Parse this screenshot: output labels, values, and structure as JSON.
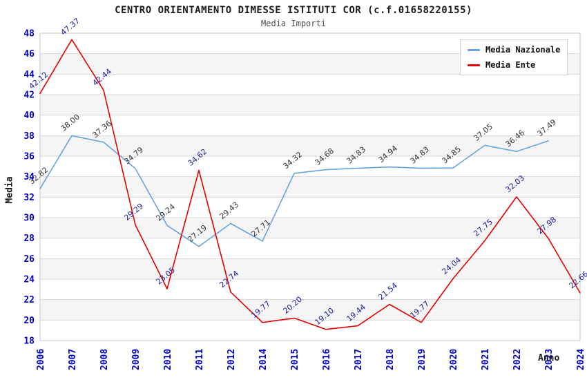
{
  "header": {
    "title": "CENTRO ORIENTAMENTO DIMESSE ISTITUTI COR (c.f.01658220155)",
    "subtitle": "Media Importi"
  },
  "legend": {
    "items": [
      {
        "label": "Media Nazionale",
        "color": "#69a3df"
      },
      {
        "label": "Media Ente",
        "color": "#e60000"
      }
    ]
  },
  "colors": {
    "axis_tick_blue": "#0000cc",
    "band_gray": "#f5f5f5",
    "gridline": "#d9d9d9",
    "plot_border": "#c8c8c8",
    "nazionale_line": "#69a3df",
    "ente_line": "#e60000",
    "nazionale_label": "#333333",
    "ente_label": "#1a1a9e"
  },
  "chart_data": {
    "type": "line",
    "title": "CENTRO ORIENTAMENTO DIMESSE ISTITUTI COR (c.f.01658220155)",
    "subtitle": "Media Importi",
    "xlabel": "Anno",
    "ylabel": "Media",
    "ylim": [
      18,
      48
    ],
    "ytick_step": 2,
    "grid": "horizontal-bands-alternating",
    "legend_position": "top-right",
    "categories": [
      "2006",
      "2007",
      "2008",
      "2009",
      "2010",
      "2011",
      "2012",
      "2014",
      "2015",
      "2016",
      "2017",
      "2018",
      "2019",
      "2020",
      "2021",
      "2022",
      "2023",
      "2024"
    ],
    "series": [
      {
        "name": "Media Nazionale",
        "color": "#69a3df",
        "label_color": "#333333",
        "values": [
          32.82,
          38.0,
          37.36,
          34.79,
          29.24,
          27.19,
          29.43,
          27.71,
          34.32,
          34.68,
          34.83,
          34.94,
          34.83,
          34.85,
          37.05,
          36.46,
          37.49,
          null
        ]
      },
      {
        "name": "Media Ente",
        "color": "#e60000",
        "label_color": "#1a1a9e",
        "values": [
          42.12,
          47.37,
          42.44,
          29.29,
          23.05,
          34.62,
          22.74,
          19.77,
          20.2,
          19.1,
          19.44,
          21.54,
          19.77,
          24.04,
          27.75,
          32.03,
          27.98,
          22.66
        ]
      }
    ]
  }
}
